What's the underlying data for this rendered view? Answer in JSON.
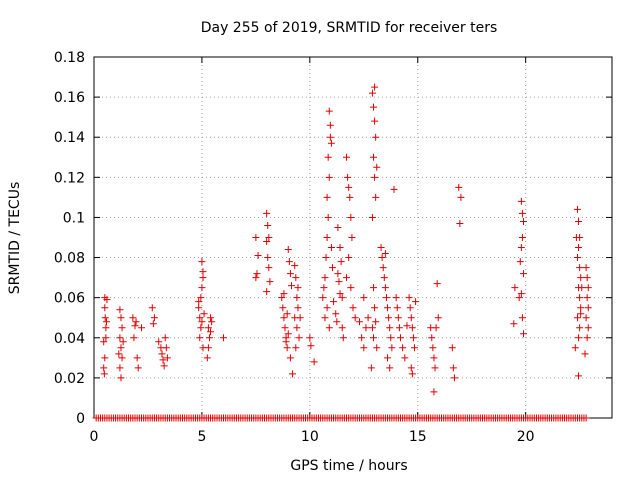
{
  "chart_data": {
    "type": "scatter",
    "title": "Day 255 of 2019, SRMTID for receiver ters",
    "xlabel": "GPS time / hours",
    "ylabel": "SRMTID / TECUs",
    "xlim": [
      0,
      24
    ],
    "ylim": [
      0,
      0.18
    ],
    "xticks": [
      0,
      5,
      10,
      15,
      20
    ],
    "xtick_labels": [
      "0",
      "5",
      "10",
      "15",
      "20"
    ],
    "yticks": [
      0,
      0.02,
      0.04,
      0.06,
      0.08,
      0.1,
      0.12,
      0.14,
      0.16,
      0.18
    ],
    "ytick_labels": [
      "0",
      "0.02",
      "0.04",
      "0.06",
      "0.08",
      "0.1",
      "0.12",
      "0.14",
      "0.16",
      "0.18"
    ],
    "grid": true,
    "marker": "+",
    "color": "#e00000",
    "zero_baseline": {
      "y": 0,
      "x_start": 0.1,
      "x_end": 22.8,
      "step": 0.1
    },
    "series": [
      {
        "name": "SRMTID",
        "points": [
          [
            0.45,
            0.038
          ],
          [
            0.5,
            0.06
          ],
          [
            0.5,
            0.055
          ],
          [
            0.52,
            0.05
          ],
          [
            0.55,
            0.045
          ],
          [
            0.5,
            0.03
          ],
          [
            0.45,
            0.025
          ],
          [
            0.55,
            0.04
          ],
          [
            0.6,
            0.059
          ],
          [
            0.48,
            0.022
          ],
          [
            0.58,
            0.048
          ],
          [
            1.2,
            0.054
          ],
          [
            1.25,
            0.05
          ],
          [
            1.3,
            0.045
          ],
          [
            1.2,
            0.04
          ],
          [
            1.25,
            0.035
          ],
          [
            1.3,
            0.03
          ],
          [
            1.2,
            0.025
          ],
          [
            1.25,
            0.02
          ],
          [
            1.35,
            0.038
          ],
          [
            1.15,
            0.032
          ],
          [
            1.8,
            0.05
          ],
          [
            1.9,
            0.046
          ],
          [
            1.85,
            0.04
          ],
          [
            1.95,
            0.048
          ],
          [
            2.0,
            0.03
          ],
          [
            2.05,
            0.025
          ],
          [
            2.2,
            0.045
          ],
          [
            2.7,
            0.055
          ],
          [
            2.8,
            0.05
          ],
          [
            2.75,
            0.047
          ],
          [
            3.1,
            0.035
          ],
          [
            3.15,
            0.032
          ],
          [
            3.2,
            0.029
          ],
          [
            3.25,
            0.026
          ],
          [
            3.3,
            0.04
          ],
          [
            3.35,
            0.035
          ],
          [
            3.4,
            0.03
          ],
          [
            3.0,
            0.038
          ],
          [
            4.85,
            0.055
          ],
          [
            4.9,
            0.05
          ],
          [
            4.95,
            0.06
          ],
          [
            5.0,
            0.065
          ],
          [
            5.05,
            0.07
          ],
          [
            5.0,
            0.078
          ],
          [
            5.05,
            0.073
          ],
          [
            4.95,
            0.045
          ],
          [
            4.9,
            0.04
          ],
          [
            5.0,
            0.048
          ],
          [
            5.1,
            0.052
          ],
          [
            5.05,
            0.035
          ],
          [
            4.85,
            0.058
          ],
          [
            5.3,
            0.045
          ],
          [
            5.35,
            0.04
          ],
          [
            5.4,
            0.05
          ],
          [
            5.45,
            0.048
          ],
          [
            5.3,
            0.035
          ],
          [
            5.25,
            0.03
          ],
          [
            5.4,
            0.043
          ],
          [
            6.0,
            0.04
          ],
          [
            7.5,
            0.09
          ],
          [
            7.6,
            0.081
          ],
          [
            7.5,
            0.07
          ],
          [
            7.55,
            0.072
          ],
          [
            8.0,
            0.102
          ],
          [
            8.05,
            0.096
          ],
          [
            8.1,
            0.09
          ],
          [
            8.0,
            0.088
          ],
          [
            8.05,
            0.08
          ],
          [
            8.1,
            0.075
          ],
          [
            8.15,
            0.068
          ],
          [
            8.0,
            0.063
          ],
          [
            8.7,
            0.06
          ],
          [
            8.75,
            0.055
          ],
          [
            8.8,
            0.05
          ],
          [
            8.85,
            0.045
          ],
          [
            8.9,
            0.04
          ],
          [
            8.95,
            0.035
          ],
          [
            9.0,
            0.084
          ],
          [
            9.05,
            0.078
          ],
          [
            9.1,
            0.072
          ],
          [
            9.15,
            0.066
          ],
          [
            9.0,
            0.042
          ],
          [
            8.9,
            0.038
          ],
          [
            9.1,
            0.03
          ],
          [
            9.2,
            0.022
          ],
          [
            8.8,
            0.062
          ],
          [
            8.95,
            0.052
          ],
          [
            9.3,
            0.076
          ],
          [
            9.35,
            0.07
          ],
          [
            9.4,
            0.06
          ],
          [
            9.45,
            0.055
          ],
          [
            9.3,
            0.05
          ],
          [
            9.4,
            0.045
          ],
          [
            9.5,
            0.04
          ],
          [
            9.35,
            0.035
          ],
          [
            9.45,
            0.065
          ],
          [
            9.55,
            0.05
          ],
          [
            10.0,
            0.04
          ],
          [
            10.05,
            0.036
          ],
          [
            10.2,
            0.028
          ],
          [
            10.6,
            0.06
          ],
          [
            10.65,
            0.065
          ],
          [
            10.7,
            0.07
          ],
          [
            10.75,
            0.08
          ],
          [
            10.8,
            0.09
          ],
          [
            10.85,
            0.1
          ],
          [
            10.8,
            0.11
          ],
          [
            10.9,
            0.12
          ],
          [
            10.85,
            0.13
          ],
          [
            10.95,
            0.14
          ],
          [
            10.9,
            0.153
          ],
          [
            10.95,
            0.146
          ],
          [
            11.0,
            0.137
          ],
          [
            10.8,
            0.055
          ],
          [
            10.9,
            0.045
          ],
          [
            11.0,
            0.085
          ],
          [
            11.05,
            0.075
          ],
          [
            10.7,
            0.05
          ],
          [
            11.1,
            0.058
          ],
          [
            11.2,
            0.052
          ],
          [
            11.25,
            0.048
          ],
          [
            11.3,
            0.072
          ],
          [
            11.35,
            0.068
          ],
          [
            11.4,
            0.062
          ],
          [
            11.45,
            0.078
          ],
          [
            11.5,
            0.045
          ],
          [
            11.55,
            0.04
          ],
          [
            11.3,
            0.095
          ],
          [
            11.4,
            0.085
          ],
          [
            11.5,
            0.06
          ],
          [
            11.7,
            0.13
          ],
          [
            11.75,
            0.12
          ],
          [
            11.8,
            0.115
          ],
          [
            11.85,
            0.11
          ],
          [
            11.9,
            0.1
          ],
          [
            11.95,
            0.09
          ],
          [
            11.8,
            0.08
          ],
          [
            11.9,
            0.065
          ],
          [
            12.0,
            0.055
          ],
          [
            12.1,
            0.05
          ],
          [
            11.7,
            0.07
          ],
          [
            12.4,
            0.04
          ],
          [
            12.5,
            0.035
          ],
          [
            12.6,
            0.045
          ],
          [
            12.7,
            0.05
          ],
          [
            12.5,
            0.06
          ],
          [
            12.3,
            0.048
          ],
          [
            12.9,
            0.162
          ],
          [
            12.95,
            0.155
          ],
          [
            13.0,
            0.148
          ],
          [
            13.05,
            0.14
          ],
          [
            12.95,
            0.13
          ],
          [
            13.0,
            0.12
          ],
          [
            13.05,
            0.11
          ],
          [
            12.9,
            0.1
          ],
          [
            12.95,
            0.065
          ],
          [
            13.0,
            0.055
          ],
          [
            13.05,
            0.048
          ],
          [
            12.9,
            0.045
          ],
          [
            12.95,
            0.04
          ],
          [
            13.1,
            0.035
          ],
          [
            12.85,
            0.025
          ],
          [
            13.0,
            0.165
          ],
          [
            13.1,
            0.125
          ],
          [
            13.3,
            0.085
          ],
          [
            13.35,
            0.08
          ],
          [
            13.4,
            0.075
          ],
          [
            13.45,
            0.07
          ],
          [
            13.5,
            0.065
          ],
          [
            13.55,
            0.06
          ],
          [
            13.6,
            0.055
          ],
          [
            13.65,
            0.05
          ],
          [
            13.7,
            0.045
          ],
          [
            13.75,
            0.04
          ],
          [
            13.8,
            0.035
          ],
          [
            13.6,
            0.03
          ],
          [
            13.7,
            0.025
          ],
          [
            13.9,
            0.114
          ],
          [
            13.5,
            0.082
          ],
          [
            14.0,
            0.06
          ],
          [
            14.05,
            0.055
          ],
          [
            14.1,
            0.05
          ],
          [
            14.15,
            0.045
          ],
          [
            14.2,
            0.04
          ],
          [
            14.3,
            0.035
          ],
          [
            14.4,
            0.03
          ],
          [
            14.5,
            0.046
          ],
          [
            14.6,
            0.06
          ],
          [
            14.65,
            0.055
          ],
          [
            14.7,
            0.05
          ],
          [
            14.75,
            0.045
          ],
          [
            14.8,
            0.04
          ],
          [
            14.85,
            0.035
          ],
          [
            14.7,
            0.025
          ],
          [
            14.75,
            0.022
          ],
          [
            14.9,
            0.058
          ],
          [
            15.6,
            0.045
          ],
          [
            15.65,
            0.04
          ],
          [
            15.7,
            0.035
          ],
          [
            15.75,
            0.03
          ],
          [
            15.8,
            0.025
          ],
          [
            15.75,
            0.013
          ],
          [
            15.9,
            0.067
          ],
          [
            15.95,
            0.05
          ],
          [
            15.85,
            0.045
          ],
          [
            16.6,
            0.035
          ],
          [
            16.65,
            0.025
          ],
          [
            16.7,
            0.02
          ],
          [
            16.9,
            0.115
          ],
          [
            17.0,
            0.11
          ],
          [
            16.95,
            0.097
          ],
          [
            19.5,
            0.065
          ],
          [
            19.45,
            0.047
          ],
          [
            19.8,
            0.108
          ],
          [
            19.85,
            0.102
          ],
          [
            19.9,
            0.098
          ],
          [
            19.85,
            0.09
          ],
          [
            19.8,
            0.085
          ],
          [
            19.75,
            0.078
          ],
          [
            19.9,
            0.072
          ],
          [
            19.8,
            0.062
          ],
          [
            19.85,
            0.05
          ],
          [
            19.9,
            0.042
          ],
          [
            19.7,
            0.06
          ],
          [
            22.4,
            0.104
          ],
          [
            22.45,
            0.098
          ],
          [
            22.5,
            0.09
          ],
          [
            22.45,
            0.085
          ],
          [
            22.4,
            0.08
          ],
          [
            22.5,
            0.075
          ],
          [
            22.55,
            0.07
          ],
          [
            22.45,
            0.065
          ],
          [
            22.5,
            0.06
          ],
          [
            22.55,
            0.055
          ],
          [
            22.4,
            0.05
          ],
          [
            22.5,
            0.045
          ],
          [
            22.45,
            0.04
          ],
          [
            22.3,
            0.035
          ],
          [
            22.45,
            0.021
          ],
          [
            22.6,
            0.065
          ],
          [
            22.35,
            0.09
          ],
          [
            22.55,
            0.052
          ],
          [
            22.8,
            0.075
          ],
          [
            22.85,
            0.07
          ],
          [
            22.9,
            0.065
          ],
          [
            22.85,
            0.06
          ],
          [
            22.8,
            0.05
          ],
          [
            22.9,
            0.045
          ],
          [
            22.85,
            0.04
          ],
          [
            22.75,
            0.032
          ],
          [
            22.9,
            0.055
          ]
        ]
      }
    ]
  }
}
